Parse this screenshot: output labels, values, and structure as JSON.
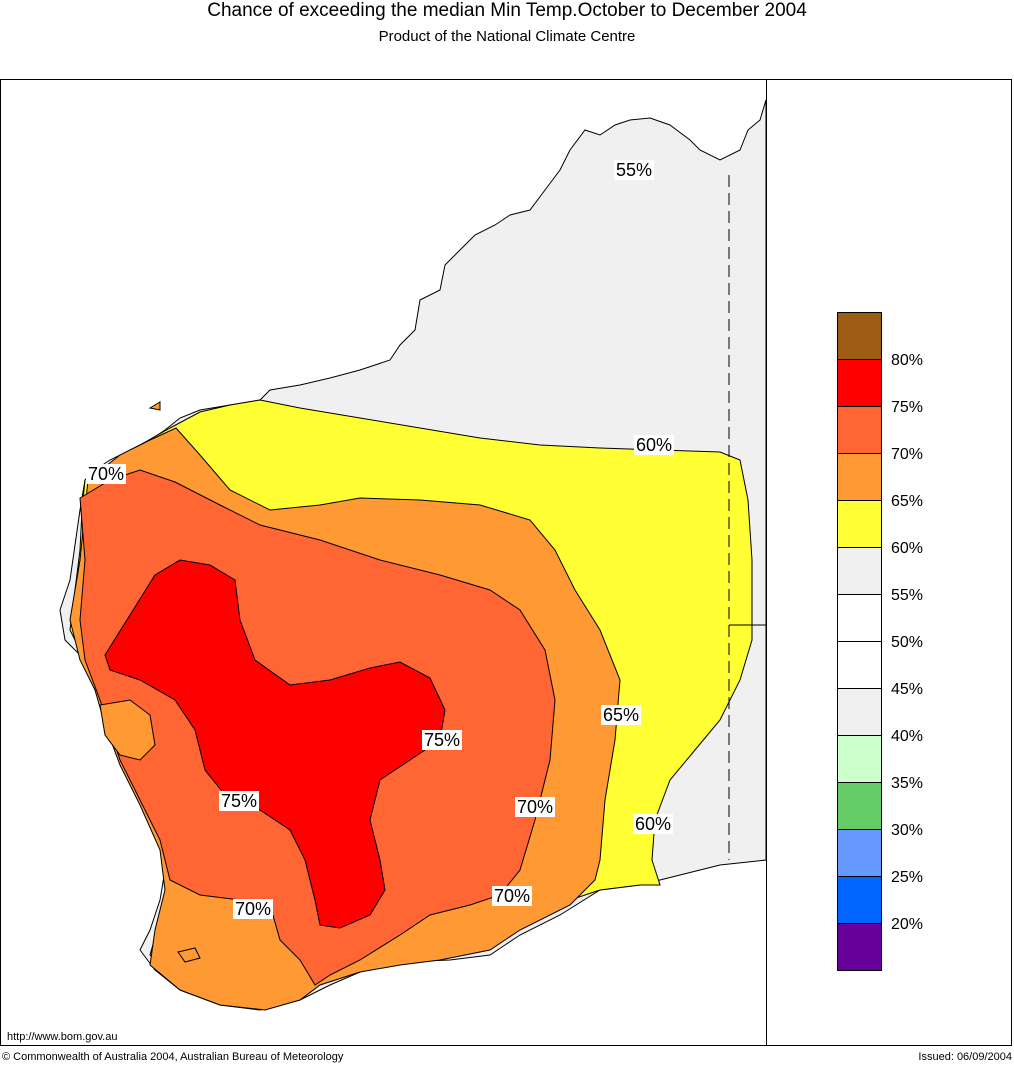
{
  "title": "Chance of exceeding the median Min Temp.October to December 2004",
  "subtitle": "Product of the National Climate Centre",
  "contour_labels": [
    "55%",
    "60%",
    "70%",
    "65%",
    "75%",
    "75%",
    "70%",
    "60%",
    "70%",
    "70%"
  ],
  "legend": {
    "labels": [
      "80%",
      "75%",
      "70%",
      "65%",
      "60%",
      "55%",
      "50%",
      "45%",
      "40%",
      "35%",
      "30%",
      "25%",
      "20%"
    ],
    "colors": [
      "#9c5c14",
      "#ff0000",
      "#ff6633",
      "#ff9933",
      "#ffff33",
      "#f0f0f0",
      "#ffffff",
      "#ffffff",
      "#f0f0f0",
      "#ccffcc",
      "#66cc66",
      "#6699ff",
      "#0066ff",
      "#660099"
    ]
  },
  "url": "http://www.bom.gov.au",
  "copyright": "© Commonwealth of Australia 2004, Australian Bureau of Meteorology",
  "issued": "Issued: 06/09/2004"
}
